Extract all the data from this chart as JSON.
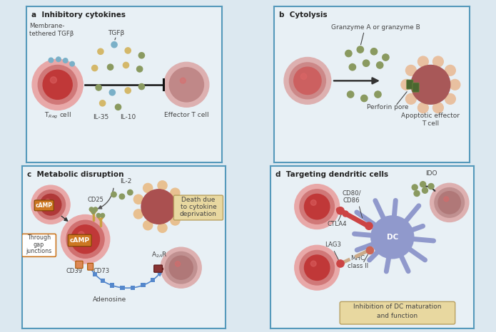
{
  "bg_color": "#dce8f0",
  "panel_bg": "#e8f0f5",
  "border_color": "#5599bb",
  "cell_outer_pink": "#e8a8a8",
  "cell_inner_red": "#c03838",
  "cell_pink_light": "#ddb0b0",
  "cell_mauve": "#c08888",
  "cell_mid": "#d07070",
  "cytokine_yellow": "#d4b86a",
  "cytokine_blue": "#7ab0c8",
  "cytokine_olive": "#8a9a60",
  "dc_blue": "#9099cc",
  "camp_orange": "#cc7722",
  "camp_text": "#ffffff",
  "connector_red": "#cc4444",
  "connector_orange": "#dd8855",
  "connector_tan": "#ccaa88",
  "text_color": "#222222",
  "label_color": "#444444",
  "box_tan_bg": "#e8d8a0",
  "box_tan_edge": "#b8a060",
  "adenosine_blue": "#5588cc",
  "green_dark": "#4a6630",
  "green_mid": "#6a8840",
  "a2ar_red": "#883333",
  "panel_titles": [
    "a  Inhibitory cytokines",
    "b  Cytolysis",
    "c  Metabolic disruption",
    "d  Targeting dendritic cells"
  ]
}
